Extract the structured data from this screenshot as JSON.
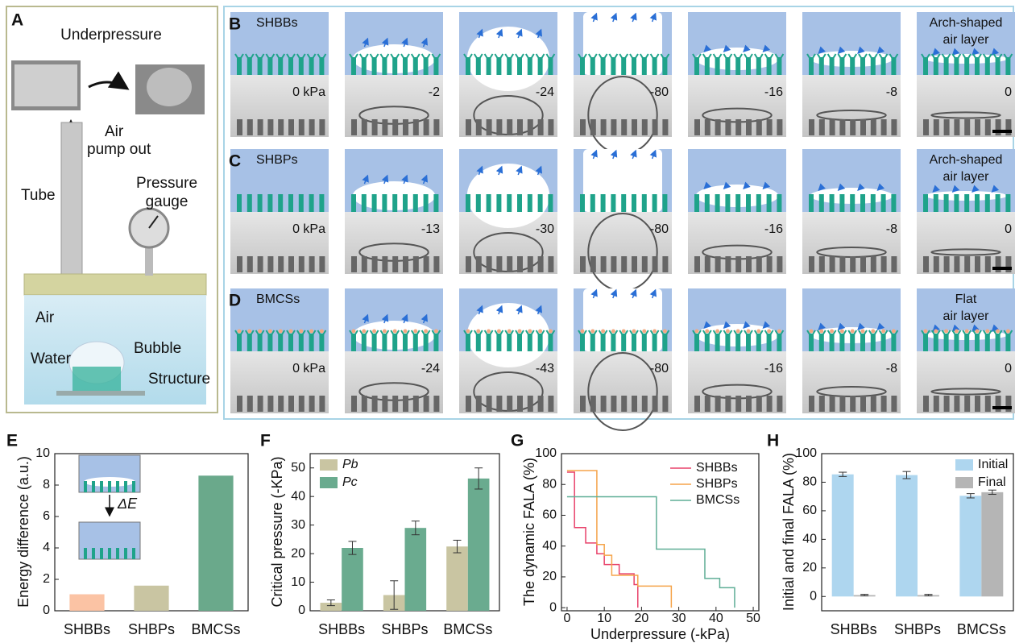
{
  "panel_a": {
    "letter": "A",
    "labels": [
      "Underpressure",
      "Air",
      "pump out",
      "Tube",
      "Pressure",
      "gauge",
      "Air",
      "Water",
      "Bubble",
      "Structure"
    ]
  },
  "panels_bcd": {
    "rows": [
      {
        "letter": "B",
        "name": "SHBBs",
        "pressures": [
          "0 kPa",
          "-2",
          "-24",
          "-80",
          "-16",
          "-8",
          "0"
        ],
        "end_label": [
          "Arch-shaped",
          "air layer"
        ]
      },
      {
        "letter": "C",
        "name": "SHBPs",
        "pressures": [
          "0 kPa",
          "-13",
          "-30",
          "-80",
          "-16",
          "-8",
          "0"
        ],
        "end_label": [
          "Arch-shaped",
          "air layer"
        ]
      },
      {
        "letter": "D",
        "name": "BMCSs",
        "pressures": [
          "0 kPa",
          "-24",
          "-43",
          "-80",
          "-16",
          "-8",
          "0"
        ],
        "end_label": [
          "Flat",
          "air layer"
        ]
      }
    ]
  },
  "chart_data": [
    {
      "type": "bar",
      "label": "E",
      "y_label": "Energy difference (a.u.)",
      "annotation": "ΔE",
      "categories": [
        "SHBBs",
        "SHBPs",
        "BMCSs"
      ],
      "values": [
        1.05,
        1.6,
        8.6
      ],
      "colors": [
        "#fbc3a4",
        "#c9c5a2",
        "#6aa98b"
      ],
      "ylim": [
        0,
        10
      ],
      "yticks": [
        0,
        2,
        4,
        6,
        8,
        10
      ]
    },
    {
      "type": "grouped_bar",
      "label": "F",
      "y_label": "Critical pressure (-KPa)",
      "categories": [
        "SHBBs",
        "SHBPs",
        "BMCSs"
      ],
      "series": [
        {
          "name": "Pb",
          "color": "#c9c5a2",
          "values": [
            2.8,
            5.5,
            22.5
          ],
          "errors": [
            1,
            5,
            2.2
          ]
        },
        {
          "name": "Pc",
          "color": "#6aab8f",
          "values": [
            22,
            29,
            46.3
          ],
          "errors": [
            2.3,
            2.4,
            3.7
          ]
        }
      ],
      "ylim": [
        0,
        55
      ],
      "yticks": [
        0,
        10,
        20,
        30,
        40,
        50
      ],
      "legend": "top-left"
    },
    {
      "type": "line",
      "label": "G",
      "y_label": "The dynamic FALA (%)",
      "x_label": "Underpressure (-kPa)",
      "series": [
        {
          "name": "SHBBs",
          "color": "#e8416a",
          "x": [
            0,
            2,
            2,
            5,
            5,
            8,
            8,
            10,
            10,
            14,
            14,
            18,
            18,
            19,
            19
          ],
          "values": [
            88,
            88,
            52,
            52,
            42,
            42,
            35,
            35,
            28,
            28,
            22,
            22,
            15,
            15,
            0
          ]
        },
        {
          "name": "SHBPs",
          "color": "#f5a44a",
          "x": [
            0,
            8,
            8,
            10,
            10,
            12,
            12,
            19,
            19,
            28,
            28
          ],
          "values": [
            89,
            89,
            41,
            41,
            34,
            34,
            21,
            21,
            14,
            14,
            0
          ]
        },
        {
          "name": "BMCSs",
          "color": "#5fae96",
          "x": [
            0,
            24,
            24,
            37,
            37,
            41,
            41,
            45,
            45
          ],
          "values": [
            72,
            72,
            38,
            38,
            19,
            19,
            13,
            13,
            0
          ]
        }
      ],
      "xlim": [
        -1.5,
        51.5
      ],
      "xticks": [
        0,
        10,
        20,
        30,
        40,
        50
      ],
      "ylim": [
        -2,
        100
      ],
      "yticks": [
        0,
        20,
        40,
        60,
        80,
        100
      ],
      "legend": "top-right"
    },
    {
      "type": "grouped_bar",
      "label": "H",
      "y_label": "Initial and final FALA (%)",
      "categories": [
        "SHBBs",
        "SHBPs",
        "BMCSs"
      ],
      "series": [
        {
          "name": "Initial",
          "color": "#aed6ef",
          "values": [
            85.5,
            85,
            70.5
          ],
          "errors": [
            1.5,
            2.5,
            1.5
          ]
        },
        {
          "name": "Final",
          "color": "#b5b5b5",
          "values": [
            1,
            1,
            73
          ],
          "errors": [
            0.5,
            0.5,
            1.5
          ]
        }
      ],
      "ylim": [
        -10,
        100
      ],
      "yticks": [
        0,
        20,
        40,
        60,
        80,
        100
      ],
      "legend": "top-right"
    }
  ]
}
